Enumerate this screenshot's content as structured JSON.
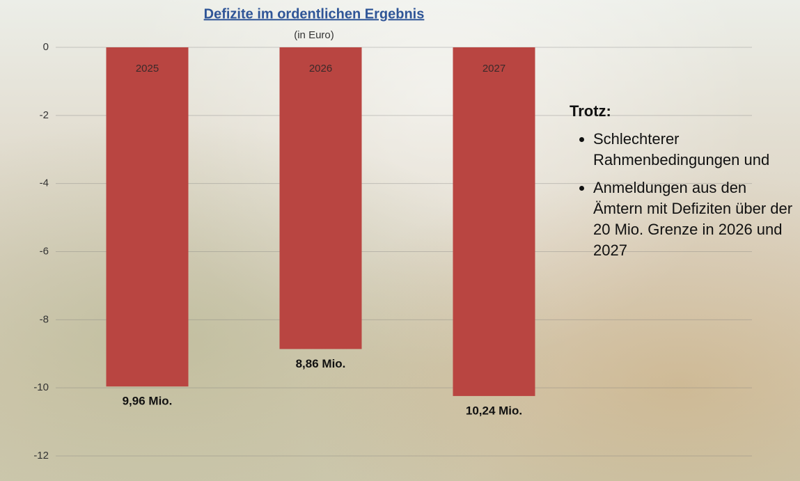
{
  "chart_data": {
    "type": "bar",
    "title": "Defizite im ordentlichen Ergebnis",
    "subtitle": "(in Euro)",
    "categories": [
      "2025",
      "2026",
      "2027"
    ],
    "values": [
      -9.96,
      -8.86,
      -10.24
    ],
    "value_labels": [
      "9,96 Mio.",
      "8,86 Mio.",
      "10,24 Mio."
    ],
    "color": "#b94541",
    "ylim": [
      -12,
      0
    ],
    "yticks": [
      -12,
      -10,
      -8,
      -6,
      -4,
      -2,
      0
    ],
    "grid": true,
    "annotation": {
      "heading": "Trotz:",
      "bullets": [
        "Schlechterer Rahmenbedingungen und",
        "Anmeldungen aus den Ämtern mit Defiziten über der 20 Mio. Grenze in 2026 und 2027"
      ]
    }
  }
}
